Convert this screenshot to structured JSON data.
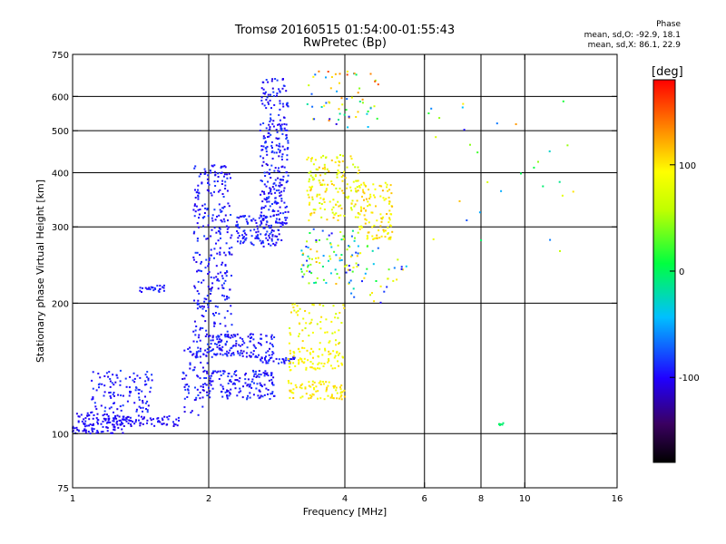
{
  "header": {
    "title": "Tromsø 20160515 01:54:00-01:55:43",
    "subtitle": "RwPretec (Bp)",
    "stats_title": "Phase",
    "stats_o": "mean, sd,O: -92.9, 18.1",
    "stats_x": "mean, sd,X:  86.1, 22.9"
  },
  "colorbar": {
    "label": "[deg]",
    "ticks": [
      "100",
      "0",
      "-100"
    ],
    "tick_values": [
      100,
      0,
      -100
    ],
    "range": [
      -180,
      180
    ]
  },
  "chart_data": {
    "type": "scatter",
    "title": "Tromsø 20160515 01:54:00-01:55:43",
    "subtitle": "RwPretec (Bp)",
    "xlabel": "Frequency [MHz]",
    "ylabel": "Stationary phase Virtual Height [km]",
    "xscale": "log",
    "yscale": "log",
    "xlim": [
      1,
      16
    ],
    "ylim": [
      75,
      750
    ],
    "xticks": [
      1,
      2,
      4,
      6,
      8,
      10,
      16
    ],
    "xtick_labels": [
      "1",
      "2",
      "4",
      "6",
      "8",
      "10",
      "16"
    ],
    "xgrid": [
      1,
      2,
      4,
      6,
      8,
      10
    ],
    "yticks": [
      75,
      100,
      200,
      300,
      400,
      500,
      600,
      750
    ],
    "ytick_labels": [
      "75",
      "100",
      "200",
      "300",
      "400",
      "500",
      "600",
      "750"
    ],
    "ygrid": [
      100,
      200,
      300,
      400,
      500,
      600
    ],
    "grid": true,
    "color_scale": "rainbow",
    "color_range": [
      -180,
      180
    ],
    "clusters": [
      {
        "f": [
          1.0,
          1.3
        ],
        "h": [
          100,
          112
        ],
        "phase": [
          -110,
          -90
        ],
        "density": 130
      },
      {
        "f": [
          1.1,
          1.5
        ],
        "h": [
          112,
          140
        ],
        "phase": [
          -110,
          -80
        ],
        "density": 110
      },
      {
        "f": [
          1.3,
          1.75
        ],
        "h": [
          104,
          110
        ],
        "phase": [
          -110,
          -90
        ],
        "density": 60
      },
      {
        "f": [
          1.4,
          1.6
        ],
        "h": [
          212,
          220
        ],
        "phase": [
          -105,
          -85
        ],
        "density": 25
      },
      {
        "f": [
          1.75,
          2.0
        ],
        "h": [
          110,
          160
        ],
        "phase": [
          -110,
          -80
        ],
        "density": 70
      },
      {
        "f": [
          1.85,
          2.25
        ],
        "h": [
          150,
          420
        ],
        "phase": [
          -110,
          -80
        ],
        "density": 330
      },
      {
        "f": [
          1.95,
          2.8
        ],
        "h": [
          120,
          140
        ],
        "phase": [
          -110,
          -80
        ],
        "density": 150
      },
      {
        "f": [
          2.0,
          2.8
        ],
        "h": [
          150,
          170
        ],
        "phase": [
          -110,
          -80
        ],
        "density": 110
      },
      {
        "f": [
          2.3,
          2.9
        ],
        "h": [
          270,
          320
        ],
        "phase": [
          -110,
          -80
        ],
        "density": 120
      },
      {
        "f": [
          2.6,
          3.0
        ],
        "h": [
          300,
          660
        ],
        "phase": [
          -110,
          -80
        ],
        "density": 280
      },
      {
        "f": [
          2.6,
          3.1
        ],
        "h": [
          145,
          150
        ],
        "phase": [
          -110,
          -80
        ],
        "density": 35
      },
      {
        "f": [
          3.0,
          4.0
        ],
        "h": [
          140,
          158
        ],
        "phase": [
          80,
          110
        ],
        "density": 80
      },
      {
        "f": [
          3.0,
          4.0
        ],
        "h": [
          120,
          133
        ],
        "phase": [
          80,
          115
        ],
        "density": 80
      },
      {
        "f": [
          3.0,
          4.0
        ],
        "h": [
          160,
          200
        ],
        "phase": [
          60,
          110
        ],
        "density": 60
      },
      {
        "f": [
          3.2,
          4.3
        ],
        "h": [
          220,
          300
        ],
        "phase": [
          -100,
          120
        ],
        "density": 90
      },
      {
        "f": [
          3.3,
          4.3
        ],
        "h": [
          310,
          440
        ],
        "phase": [
          60,
          120
        ],
        "density": 160
      },
      {
        "f": [
          3.3,
          4.8
        ],
        "h": [
          500,
          690
        ],
        "phase": [
          -110,
          160
        ],
        "density": 60
      },
      {
        "f": [
          4.3,
          5.1
        ],
        "h": [
          280,
          380
        ],
        "phase": [
          80,
          120
        ],
        "density": 110
      },
      {
        "f": [
          4.0,
          5.5
        ],
        "h": [
          200,
          290
        ],
        "phase": [
          -100,
          110
        ],
        "density": 40
      },
      {
        "f": [
          6.0,
          13.0
        ],
        "h": [
          260,
          600
        ],
        "phase": [
          -110,
          130
        ],
        "density": 30
      },
      {
        "f": [
          8.7,
          9.0
        ],
        "h": [
          104,
          106
        ],
        "phase": [
          -10,
          0
        ],
        "density": 6
      }
    ]
  }
}
